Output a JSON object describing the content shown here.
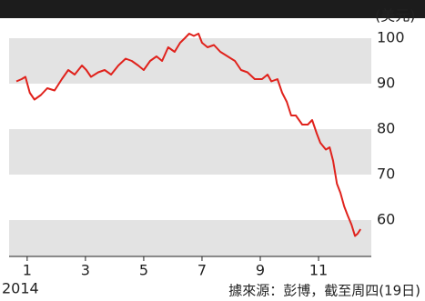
{
  "chart_data": {
    "type": "line",
    "y_unit": "(美元)",
    "year": "2014",
    "source": "據來源：彭博，截至周四(19日)",
    "series": [
      {
        "color": "#e0221c",
        "x": [
          0.63,
          0.81,
          0.94,
          1.09,
          1.25,
          1.47,
          1.69,
          1.94,
          2.19,
          2.41,
          2.63,
          2.88,
          3.03,
          3.19,
          3.44,
          3.66,
          3.88,
          4.13,
          4.38,
          4.59,
          4.81,
          5.0,
          5.22,
          5.44,
          5.63,
          5.84,
          6.06,
          6.25,
          6.41,
          6.56,
          6.72,
          6.88,
          7.0,
          7.19,
          7.41,
          7.63,
          7.88,
          8.13,
          8.34,
          8.56,
          8.81,
          9.06,
          9.25,
          9.38,
          9.59,
          9.75,
          9.91,
          10.06,
          10.22,
          10.44,
          10.63,
          10.78,
          10.94,
          11.06,
          11.25,
          11.38,
          11.5,
          11.63,
          11.75,
          11.88,
          12.0,
          12.13,
          12.25,
          12.34,
          12.44
        ],
        "values": [
          90.5,
          91,
          91.5,
          88,
          86.5,
          87.5,
          89,
          88.5,
          91,
          93,
          92,
          94,
          93,
          91.5,
          92.5,
          93,
          92,
          94,
          95.5,
          95,
          94,
          93,
          95,
          96,
          95,
          98,
          97,
          99,
          100,
          101,
          100.5,
          101,
          99,
          98,
          98.5,
          97,
          96,
          95,
          93,
          92.5,
          91,
          91,
          92,
          90.5,
          91,
          88,
          86,
          83,
          83,
          81,
          81,
          82,
          79,
          77,
          75.5,
          76,
          73,
          68,
          66,
          63,
          61,
          59,
          56.5,
          57,
          58
        ]
      }
    ],
    "xlim": [
      0.38,
      12.81
    ],
    "xticks": [
      1,
      3,
      5,
      7,
      9,
      11
    ],
    "ylim": [
      52,
      104
    ],
    "yticks": [
      60,
      70,
      80,
      90,
      100
    ]
  }
}
